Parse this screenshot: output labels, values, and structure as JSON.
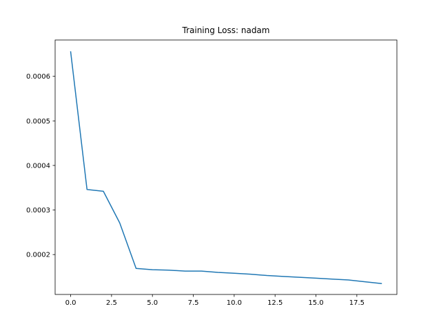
{
  "chart_data": {
    "type": "line",
    "title": "Training Loss: nadam",
    "xlabel": "",
    "ylabel": "",
    "xlim": [
      -0.95,
      19.95
    ],
    "ylim": [
      0.0001105,
      0.0006815
    ],
    "xticks": [
      0,
      2.5,
      5,
      7.5,
      10,
      12.5,
      15,
      17.5
    ],
    "xtick_labels": [
      "0.0",
      "2.5",
      "5.0",
      "7.5",
      "10.0",
      "12.5",
      "15.0",
      "17.5"
    ],
    "yticks": [
      0.0002,
      0.0003,
      0.0004,
      0.0005,
      0.0006
    ],
    "ytick_labels": [
      "0.0002",
      "0.0003",
      "0.0004",
      "0.0005",
      "0.0006"
    ],
    "grid": false,
    "series": [
      {
        "color": "#1f77b4",
        "x": [
          0,
          1,
          2,
          3,
          4,
          5,
          6,
          7,
          8,
          9,
          10,
          11,
          12,
          13,
          14,
          15,
          16,
          17,
          18,
          19
        ],
        "y": [
          0.000655,
          0.000346,
          0.000342,
          0.000271,
          0.000169,
          0.000166,
          0.000165,
          0.000163,
          0.000163,
          0.00016,
          0.000158,
          0.000156,
          0.000153,
          0.000151,
          0.000149,
          0.000147,
          0.000145,
          0.000143,
          0.000139,
          0.000135
        ]
      }
    ]
  }
}
